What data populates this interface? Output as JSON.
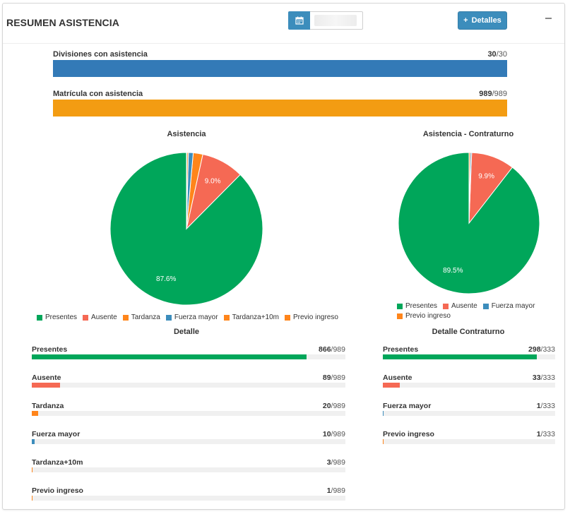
{
  "header": {
    "title": "RESUMEN ASISTENCIA",
    "calendar_icon": "calendar-icon",
    "date_value": "",
    "details_button": "Detalles",
    "details_icon": "plus-icon",
    "collapse_icon": "minus-icon"
  },
  "colors": {
    "blue": "#337ab7",
    "orange": "#f39c12",
    "green": "#00a65a",
    "red": "#f56954",
    "fuerza": "#3c8dbc",
    "previo": "#ff851b",
    "gray_slice": "#d2d6de"
  },
  "summary": [
    {
      "label": "Divisiones con asistencia",
      "value": "30",
      "total": "30",
      "fraction": 1.0,
      "color": "#337ab7"
    },
    {
      "label": "Matrícula con asistencia",
      "value": "989",
      "total": "989",
      "fraction": 1.0,
      "color": "#f39c12"
    }
  ],
  "chart_data": [
    {
      "type": "pie",
      "title": "Asistencia",
      "labels": [
        "Presentes",
        "Ausente",
        "Tardanza",
        "Fuerza mayor",
        "Tardanza+10m",
        "Previo ingreso"
      ],
      "values": [
        866,
        89,
        20,
        10,
        3,
        1
      ],
      "colors": [
        "#00a65a",
        "#f56954",
        "#ff851b",
        "#3c8dbc",
        "#ff851b",
        "#ff851b"
      ],
      "data_labels": [
        "87.6%",
        "9.0%",
        "",
        "",
        "",
        ""
      ],
      "legend": "bottom"
    },
    {
      "type": "pie",
      "title": "Asistencia - Contraturno",
      "labels": [
        "Presentes",
        "Ausente",
        "Fuerza mayor",
        "Previo ingreso"
      ],
      "values": [
        298,
        33,
        1,
        1
      ],
      "colors": [
        "#00a65a",
        "#f56954",
        "#3c8dbc",
        "#ff851b"
      ],
      "data_labels": [
        "89.5%",
        "9.9%",
        "",
        ""
      ],
      "legend": "bottom"
    }
  ],
  "detalle": {
    "title": "Detalle",
    "rows": [
      {
        "label": "Presentes",
        "value": "866",
        "total": "989",
        "fraction": 0.876,
        "color": "#00a65a"
      },
      {
        "label": "Ausente",
        "value": "89",
        "total": "989",
        "fraction": 0.09,
        "color": "#f56954"
      },
      {
        "label": "Tardanza",
        "value": "20",
        "total": "989",
        "fraction": 0.02,
        "color": "#ff851b"
      },
      {
        "label": "Fuerza mayor",
        "value": "10",
        "total": "989",
        "fraction": 0.01,
        "color": "#3c8dbc"
      },
      {
        "label": "Tardanza+10m",
        "value": "3",
        "total": "989",
        "fraction": 0.003,
        "color": "#ff851b"
      },
      {
        "label": "Previo ingreso",
        "value": "1",
        "total": "989",
        "fraction": 0.001,
        "color": "#ff851b"
      }
    ]
  },
  "detalle_contraturno": {
    "title": "Detalle Contraturno",
    "rows": [
      {
        "label": "Presentes",
        "value": "298",
        "total": "333",
        "fraction": 0.895,
        "color": "#00a65a"
      },
      {
        "label": "Ausente",
        "value": "33",
        "total": "333",
        "fraction": 0.099,
        "color": "#f56954"
      },
      {
        "label": "Fuerza mayor",
        "value": "1",
        "total": "333",
        "fraction": 0.003,
        "color": "#3c8dbc"
      },
      {
        "label": "Previo ingreso",
        "value": "1",
        "total": "333",
        "fraction": 0.003,
        "color": "#ff851b"
      }
    ]
  }
}
